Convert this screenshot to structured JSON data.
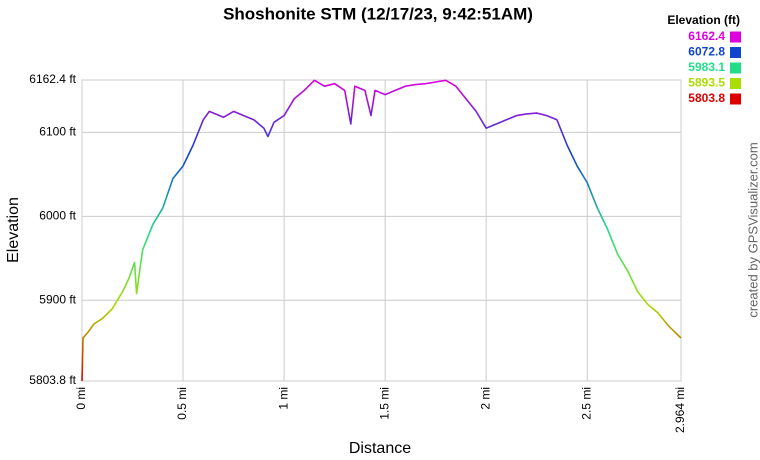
{
  "chart_data": {
    "type": "line",
    "title": "Shoshonite STM (12/17/23, 9:42:51AM)",
    "x_label": "Distance",
    "y_label": "Elevation",
    "annotation": "created by GPSVisualizer.com",
    "color_scale": {
      "title": "Elevation (ft)",
      "stops": [
        {
          "value": 6162.4,
          "color": "#dd00dd"
        },
        {
          "value": 6072.8,
          "color": "#1144cc"
        },
        {
          "value": 5983.1,
          "color": "#22dd88"
        },
        {
          "value": 5893.5,
          "color": "#aadd00"
        },
        {
          "value": 5803.8,
          "color": "#dd0000"
        }
      ]
    },
    "x": [
      0,
      0.005,
      0.03,
      0.06,
      0.1,
      0.15,
      0.2,
      0.23,
      0.26,
      0.27,
      0.3,
      0.35,
      0.4,
      0.45,
      0.5,
      0.55,
      0.6,
      0.63,
      0.7,
      0.75,
      0.8,
      0.85,
      0.9,
      0.92,
      0.95,
      1.0,
      1.05,
      1.1,
      1.15,
      1.2,
      1.25,
      1.3,
      1.33,
      1.35,
      1.4,
      1.43,
      1.45,
      1.5,
      1.55,
      1.6,
      1.65,
      1.7,
      1.75,
      1.8,
      1.85,
      1.9,
      1.95,
      2.0,
      2.05,
      2.1,
      2.15,
      2.2,
      2.25,
      2.3,
      2.35,
      2.4,
      2.45,
      2.5,
      2.55,
      2.6,
      2.65,
      2.7,
      2.75,
      2.8,
      2.85,
      2.9,
      2.964
    ],
    "values": [
      5803.8,
      5855,
      5862,
      5872,
      5878,
      5890,
      5910,
      5925,
      5945,
      5908,
      5960,
      5990,
      6010,
      6045,
      6060,
      6085,
      6115,
      6125,
      6118,
      6125,
      6120,
      6115,
      6105,
      6095,
      6112,
      6120,
      6140,
      6150,
      6162,
      6155,
      6158,
      6150,
      6110,
      6155,
      6150,
      6120,
      6150,
      6145,
      6150,
      6155,
      6157,
      6158,
      6160,
      6162,
      6155,
      6140,
      6125,
      6105,
      6110,
      6115,
      6120,
      6122,
      6123,
      6120,
      6115,
      6085,
      6060,
      6040,
      6010,
      5985,
      5955,
      5935,
      5910,
      5895,
      5885,
      5870,
      5855
    ],
    "xlim": [
      0,
      2.964
    ],
    "xticks": [
      {
        "value": 0,
        "label": "0 mi"
      },
      {
        "value": 0.5,
        "label": "0.5 mi"
      },
      {
        "value": 1,
        "label": "1 mi"
      },
      {
        "value": 1.5,
        "label": "1.5 mi"
      },
      {
        "value": 2,
        "label": "2 mi"
      },
      {
        "value": 2.5,
        "label": "2.5 mi"
      },
      {
        "value": 2.964,
        "label": "2.964 mi"
      }
    ],
    "ylim": [
      5803.8,
      6162.4
    ],
    "yticks": [
      {
        "value": 5803.8,
        "label": "5803.8 ft"
      },
      {
        "value": 5900,
        "label": "5900 ft"
      },
      {
        "value": 6000,
        "label": "6000 ft"
      },
      {
        "value": 6100,
        "label": "6100 ft"
      },
      {
        "value": 6162.4,
        "label": "6162.4 ft"
      }
    ],
    "grid": true
  }
}
